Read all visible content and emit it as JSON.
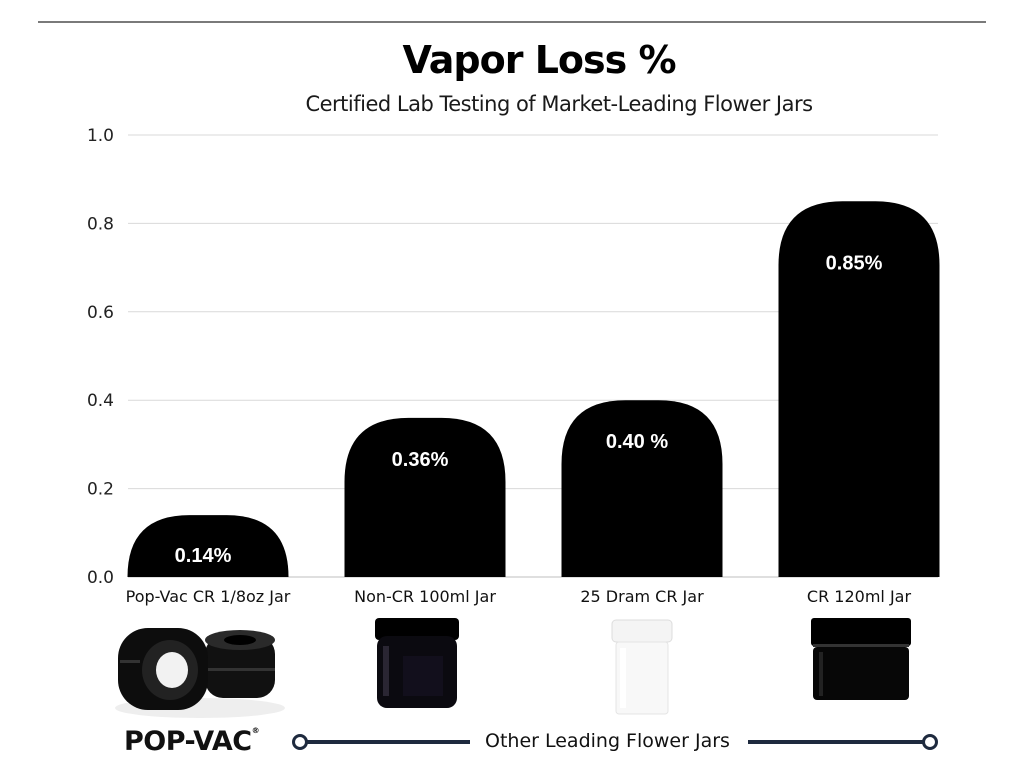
{
  "chart_data": {
    "type": "bar",
    "title": "Vapor Loss %",
    "subtitle": "Certified Lab Testing of Market-Leading Flower Jars",
    "categories": [
      "Pop-Vac CR 1/8oz Jar",
      "Non-CR 100ml Jar",
      "25 Dram CR Jar",
      "CR 120ml Jar"
    ],
    "values": [
      0.14,
      0.36,
      0.4,
      0.85
    ],
    "data_labels": [
      "0.14%",
      "0.36%",
      "0.40 %",
      "0.85%"
    ],
    "y_ticks": [
      "0.0",
      "0.2",
      "0.4",
      "0.6",
      "0.8",
      "1.0"
    ],
    "ylim": [
      0,
      1.0
    ],
    "xlabel": "",
    "ylabel": "",
    "grid": true,
    "bar_color": "#000000"
  },
  "footer": {
    "brand": "POP-VAC",
    "brand_mark": "®",
    "other_label": "Other Leading Flower Jars"
  },
  "colors": {
    "accent": "#1e2a3e",
    "grid": "#d9d9d9"
  }
}
